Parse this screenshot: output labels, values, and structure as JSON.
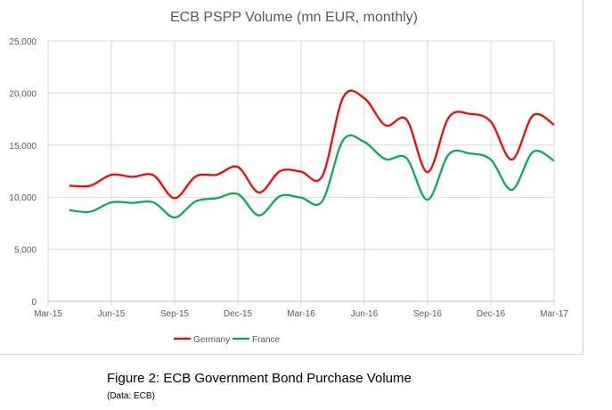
{
  "chart_data": {
    "type": "line",
    "title": "ECB PSPP Volume (mn EUR, monthly)",
    "xlabel": "",
    "ylabel": "",
    "ylim": [
      0,
      25000
    ],
    "yticks": [
      "0",
      "5,000",
      "10,000",
      "15,000",
      "20,000",
      "25,000"
    ],
    "xticks": [
      "Mar-15",
      "Jun-15",
      "Sep-15",
      "Dec-15",
      "Mar-16",
      "Jun-16",
      "Sep-16",
      "Dec-16",
      "Mar-17"
    ],
    "grid": true,
    "smoothed": true,
    "legend_position": "bottom",
    "x": [
      "Apr-15",
      "May-15",
      "Jun-15",
      "Jul-15",
      "Aug-15",
      "Sep-15",
      "Oct-15",
      "Nov-15",
      "Dec-15",
      "Jan-16",
      "Feb-16",
      "Mar-16",
      "Apr-16",
      "May-16",
      "Jun-16",
      "Jul-16",
      "Aug-16",
      "Sep-16",
      "Oct-16",
      "Nov-16",
      "Dec-16",
      "Jan-17",
      "Feb-17",
      "Mar-17"
    ],
    "series": [
      {
        "name": "Germany",
        "color": "#ff0000",
        "values": [
          11100,
          11100,
          12150,
          11950,
          12100,
          9900,
          12000,
          12150,
          12900,
          10450,
          12500,
          12450,
          12000,
          19600,
          19500,
          16900,
          17450,
          12400,
          17650,
          18000,
          17250,
          13600,
          17850,
          16950
        ]
      },
      {
        "name": "France",
        "color": "#00b050",
        "values": [
          8750,
          8600,
          9500,
          9450,
          9500,
          8050,
          9600,
          9900,
          10300,
          8250,
          10100,
          9950,
          9600,
          15500,
          15300,
          13650,
          13750,
          9750,
          14100,
          14200,
          13600,
          10700,
          14350,
          13500
        ]
      }
    ]
  },
  "caption": {
    "title": "Figure 2: ECB Government Bond Purchase Volume",
    "source": "(Data: ECB)"
  }
}
